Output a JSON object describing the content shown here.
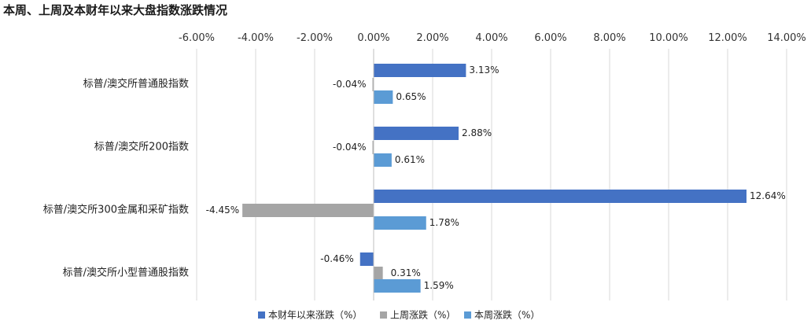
{
  "chart_data": {
    "type": "bar",
    "orientation": "horizontal",
    "title": "本周、上周及本财年以来大盘指数涨跌情况",
    "categories": [
      "标普/澳交所普通股指数",
      "标普/澳交所200指数",
      "标普/澳交所300金属和采矿指数",
      "标普/澳交所小型普通股指数"
    ],
    "series": [
      {
        "name": "本财年以来涨跌（%）",
        "color": "#4472C4",
        "values": [
          3.13,
          2.88,
          12.64,
          -0.46
        ]
      },
      {
        "name": "上周涨跌（%）",
        "color": "#A5A5A5",
        "values": [
          -0.04,
          -0.04,
          -4.45,
          0.31
        ]
      },
      {
        "name": "本周涨跌（%）",
        "color": "#5B9BD5",
        "values": [
          0.65,
          0.61,
          1.78,
          1.59
        ]
      }
    ],
    "xlim": [
      -6,
      14
    ],
    "xticks": [
      -6,
      -4,
      -2,
      0,
      2,
      4,
      6,
      8,
      10,
      12,
      14
    ],
    "xtick_labels": [
      "-6.00%",
      "-4.00%",
      "-2.00%",
      "0.00%",
      "2.00%",
      "4.00%",
      "6.00%",
      "8.00%",
      "10.00%",
      "12.00%",
      "14.00%"
    ],
    "data_labels": [
      [
        "3.13%",
        "2.88%",
        "12.64%",
        "-0.46%"
      ],
      [
        "-0.04%",
        "-0.04%",
        "-4.45%",
        "0.31%"
      ],
      [
        "0.65%",
        "0.61%",
        "1.78%",
        "1.59%"
      ]
    ],
    "axis_position": "top",
    "grid": true,
    "legend_position": "bottom"
  }
}
